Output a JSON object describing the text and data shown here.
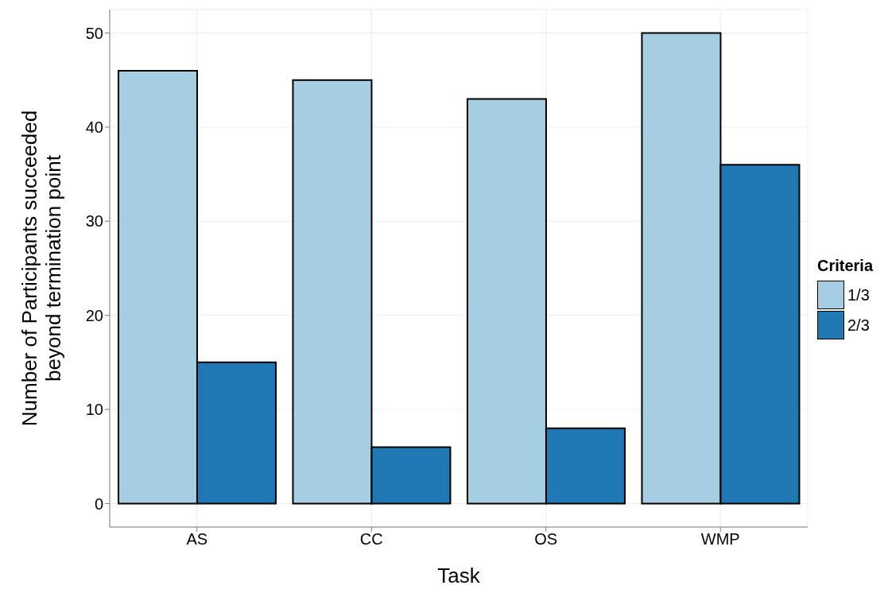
{
  "chart_data": {
    "type": "bar",
    "xlabel": "Task",
    "ylabel": "Number of Participants succeeded beyond termination point",
    "legend_title": "Criteria",
    "categories": [
      "AS",
      "CC",
      "OS",
      "WMP"
    ],
    "series": [
      {
        "name": "1/3",
        "color": "#a6cee3",
        "values": [
          46,
          45,
          43,
          50
        ]
      },
      {
        "name": "2/3",
        "color": "#1f78b4",
        "values": [
          15,
          6,
          8,
          36
        ]
      }
    ],
    "ylim": [
      -2.5,
      52.5
    ],
    "yticks": [
      0,
      10,
      20,
      30,
      40,
      50
    ],
    "grid": true,
    "legend": "right"
  }
}
